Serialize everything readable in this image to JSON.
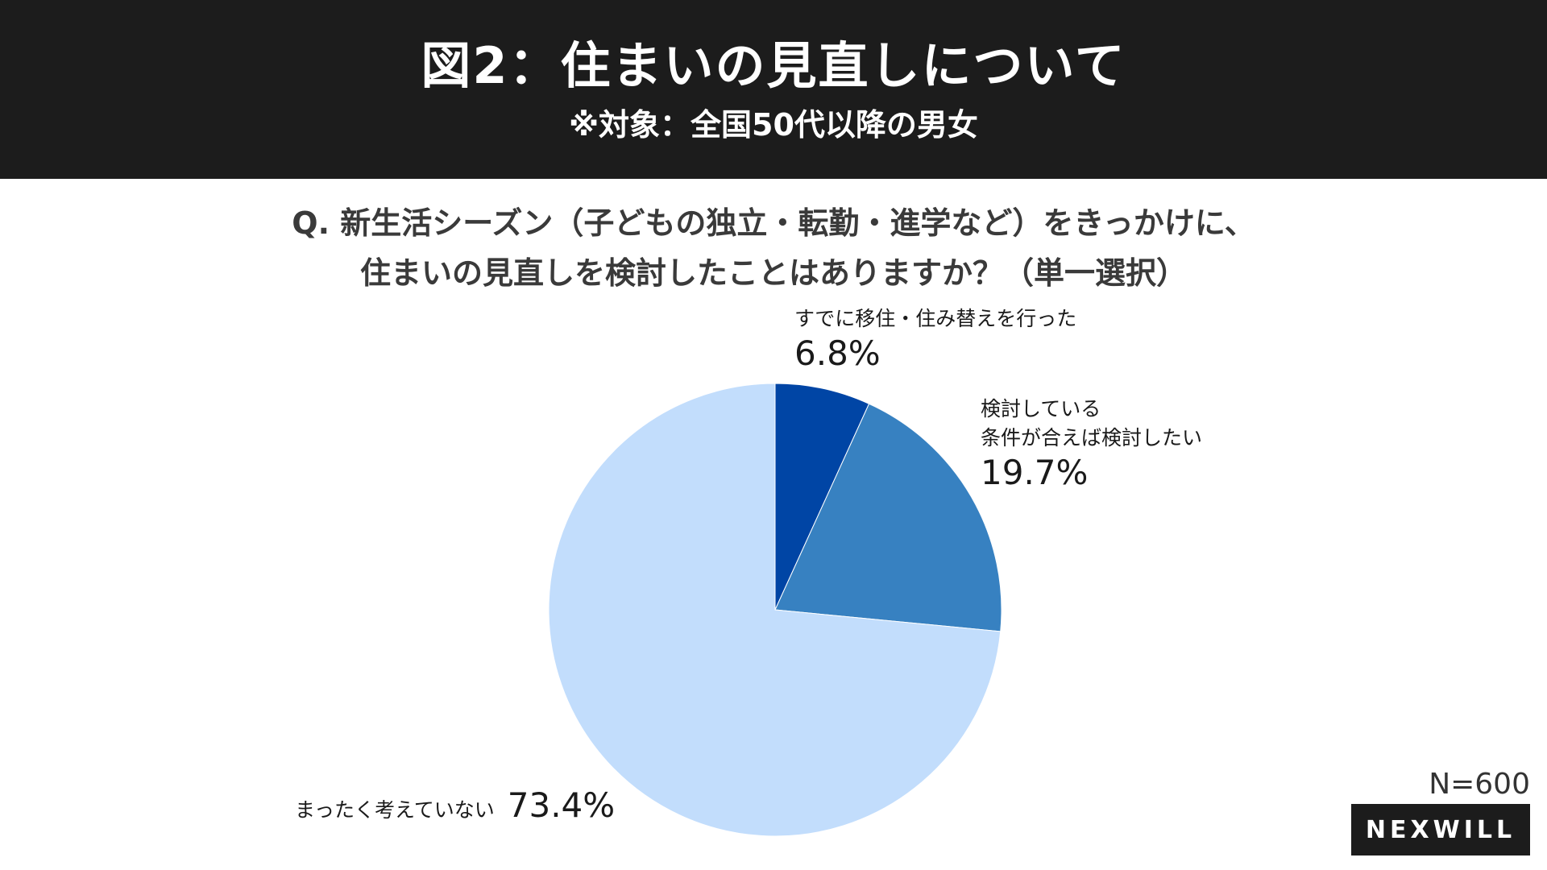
{
  "header": {
    "title": "図2：住まいの見直しについて",
    "subtitle": "※対象：全国50代以降の男女"
  },
  "question": {
    "line1": "Q. 新生活シーズン（子どもの独立・転勤・進学など）をきっかけに、",
    "line2": "住まいの見直しを検討したことはありますか？（単一選択）"
  },
  "chart_data": {
    "type": "pie",
    "start_angle": "12 o'clock",
    "direction": "clockwise",
    "slices": [
      {
        "label": "すでに移住・住み替えを行った",
        "value": 6.8,
        "value_label": "6.8%",
        "color": "#0045a5"
      },
      {
        "label": "検討している\n条件が合えば検討したい",
        "value": 19.7,
        "value_label": "19.7%",
        "color": "#3781c1"
      },
      {
        "label": "まったく考えていない",
        "value": 73.4,
        "value_label": "73.4%",
        "color": "#c2ddfc"
      }
    ]
  },
  "labels": {
    "slice1_cat": "すでに移住・住み替えを行った",
    "slice1_pct": "6.8%",
    "slice2_cat_line1": "検討している",
    "slice2_cat_line2": "条件が合えば検討したい",
    "slice2_pct": "19.7%",
    "slice3_cat": "まったく考えていない",
    "slice3_pct": "73.4%"
  },
  "sample_size": "N=600",
  "brand": "NEXWILL"
}
